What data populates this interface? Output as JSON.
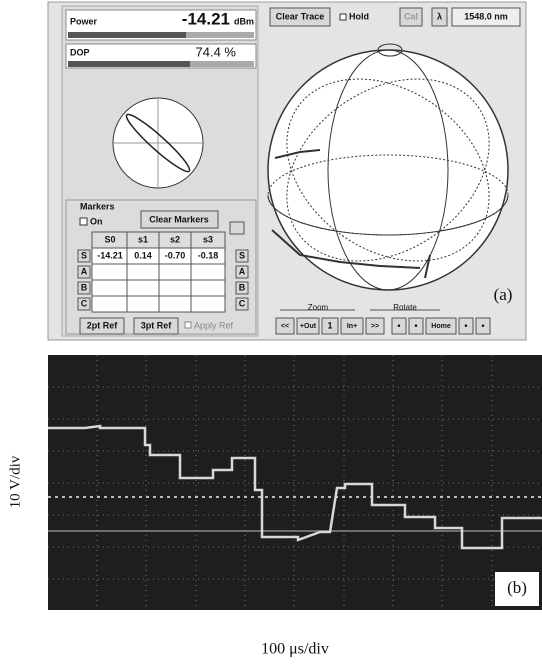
{
  "panel_a": {
    "power": {
      "label": "Power",
      "value": "-14.21",
      "unit": "dBm"
    },
    "dop": {
      "label": "DOP",
      "value": "74.4 %"
    },
    "toolbar": {
      "clear_trace": "Clear Trace",
      "hold": "Hold",
      "cal": "Cal",
      "lambda": "λ",
      "wavelength": "1548.0 nm"
    },
    "markers": {
      "title": "Markers",
      "on": "On",
      "clear_markers": "Clear Markers",
      "columns": [
        "S0",
        "s1",
        "s2",
        "s3"
      ],
      "row_buttons": [
        "S",
        "A",
        "B",
        "C"
      ],
      "row_buttons_right": [
        "S",
        "A",
        "B",
        "C"
      ],
      "s_row": [
        "-14.21",
        "0.14",
        "-0.70",
        "-0.18"
      ],
      "ref_buttons": [
        "2pt Ref",
        "3pt Ref"
      ],
      "apply_ref": "Apply Ref"
    },
    "zoom_label": "Zoom",
    "rotate_label": "Rotate",
    "nav_buttons": [
      "<<",
      "+Out",
      "1",
      "In+",
      ">>",
      "•",
      "•",
      "Home",
      "•",
      "•"
    ],
    "panel_label": "(a)"
  },
  "panel_b": {
    "y_label": "10 V/div",
    "x_label": "100 μs/div",
    "panel_label": "(b)"
  }
}
